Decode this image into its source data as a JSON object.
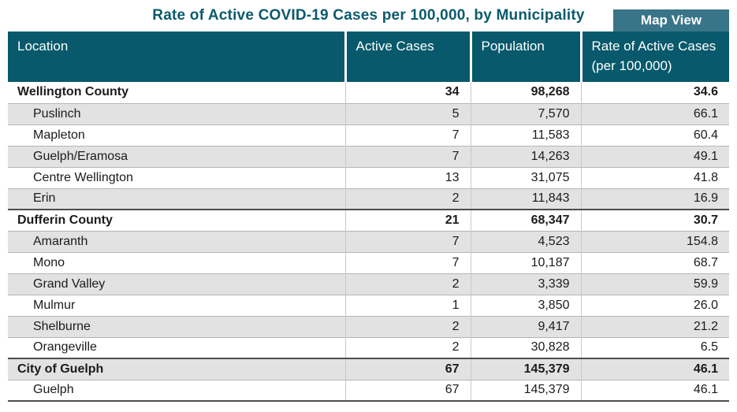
{
  "title": "Rate of Active COVID-19 Cases per 100,000, by Municipality",
  "map_view_button": "Map View",
  "colors": {
    "header_bg": "#07596b",
    "title_text": "#0c5a6d",
    "button_bg": "#397588",
    "row_alt_bg": "#e2e2e2",
    "section_border": "#4d4d4d",
    "row_border": "#b5b5b5",
    "col_divider": "#c9c9c9",
    "body_text": "#1b1b1b"
  },
  "table": {
    "columns": [
      "Location",
      "Active Cases",
      "Population",
      "Rate of Active Cases\n(per 100,000)"
    ],
    "rows": [
      {
        "location": "Wellington County",
        "active_cases": "34",
        "population": "98,268",
        "rate": "34.6",
        "group": true,
        "section": false
      },
      {
        "location": "Puslinch",
        "active_cases": "5",
        "population": "7,570",
        "rate": "66.1",
        "group": false,
        "section": false
      },
      {
        "location": "Mapleton",
        "active_cases": "7",
        "population": "11,583",
        "rate": "60.4",
        "group": false,
        "section": false
      },
      {
        "location": "Guelph/Eramosa",
        "active_cases": "7",
        "population": "14,263",
        "rate": "49.1",
        "group": false,
        "section": false
      },
      {
        "location": "Centre Wellington",
        "active_cases": "13",
        "population": "31,075",
        "rate": "41.8",
        "group": false,
        "section": false
      },
      {
        "location": "Erin",
        "active_cases": "2",
        "population": "11,843",
        "rate": "16.9",
        "group": false,
        "section": false
      },
      {
        "location": "Dufferin County",
        "active_cases": "21",
        "population": "68,347",
        "rate": "30.7",
        "group": true,
        "section": true
      },
      {
        "location": "Amaranth",
        "active_cases": "7",
        "population": "4,523",
        "rate": "154.8",
        "group": false,
        "section": false
      },
      {
        "location": "Mono",
        "active_cases": "7",
        "population": "10,187",
        "rate": "68.7",
        "group": false,
        "section": false
      },
      {
        "location": "Grand Valley",
        "active_cases": "2",
        "population": "3,339",
        "rate": "59.9",
        "group": false,
        "section": false
      },
      {
        "location": "Mulmur",
        "active_cases": "1",
        "population": "3,850",
        "rate": "26.0",
        "group": false,
        "section": false
      },
      {
        "location": "Shelburne",
        "active_cases": "2",
        "population": "9,417",
        "rate": "21.2",
        "group": false,
        "section": false
      },
      {
        "location": "Orangeville",
        "active_cases": "2",
        "population": "30,828",
        "rate": "6.5",
        "group": false,
        "section": false
      },
      {
        "location": "City of Guelph",
        "active_cases": "67",
        "population": "145,379",
        "rate": "46.1",
        "group": true,
        "section": true
      },
      {
        "location": "Guelph",
        "active_cases": "67",
        "population": "145,379",
        "rate": "46.1",
        "group": false,
        "section": false
      }
    ]
  }
}
